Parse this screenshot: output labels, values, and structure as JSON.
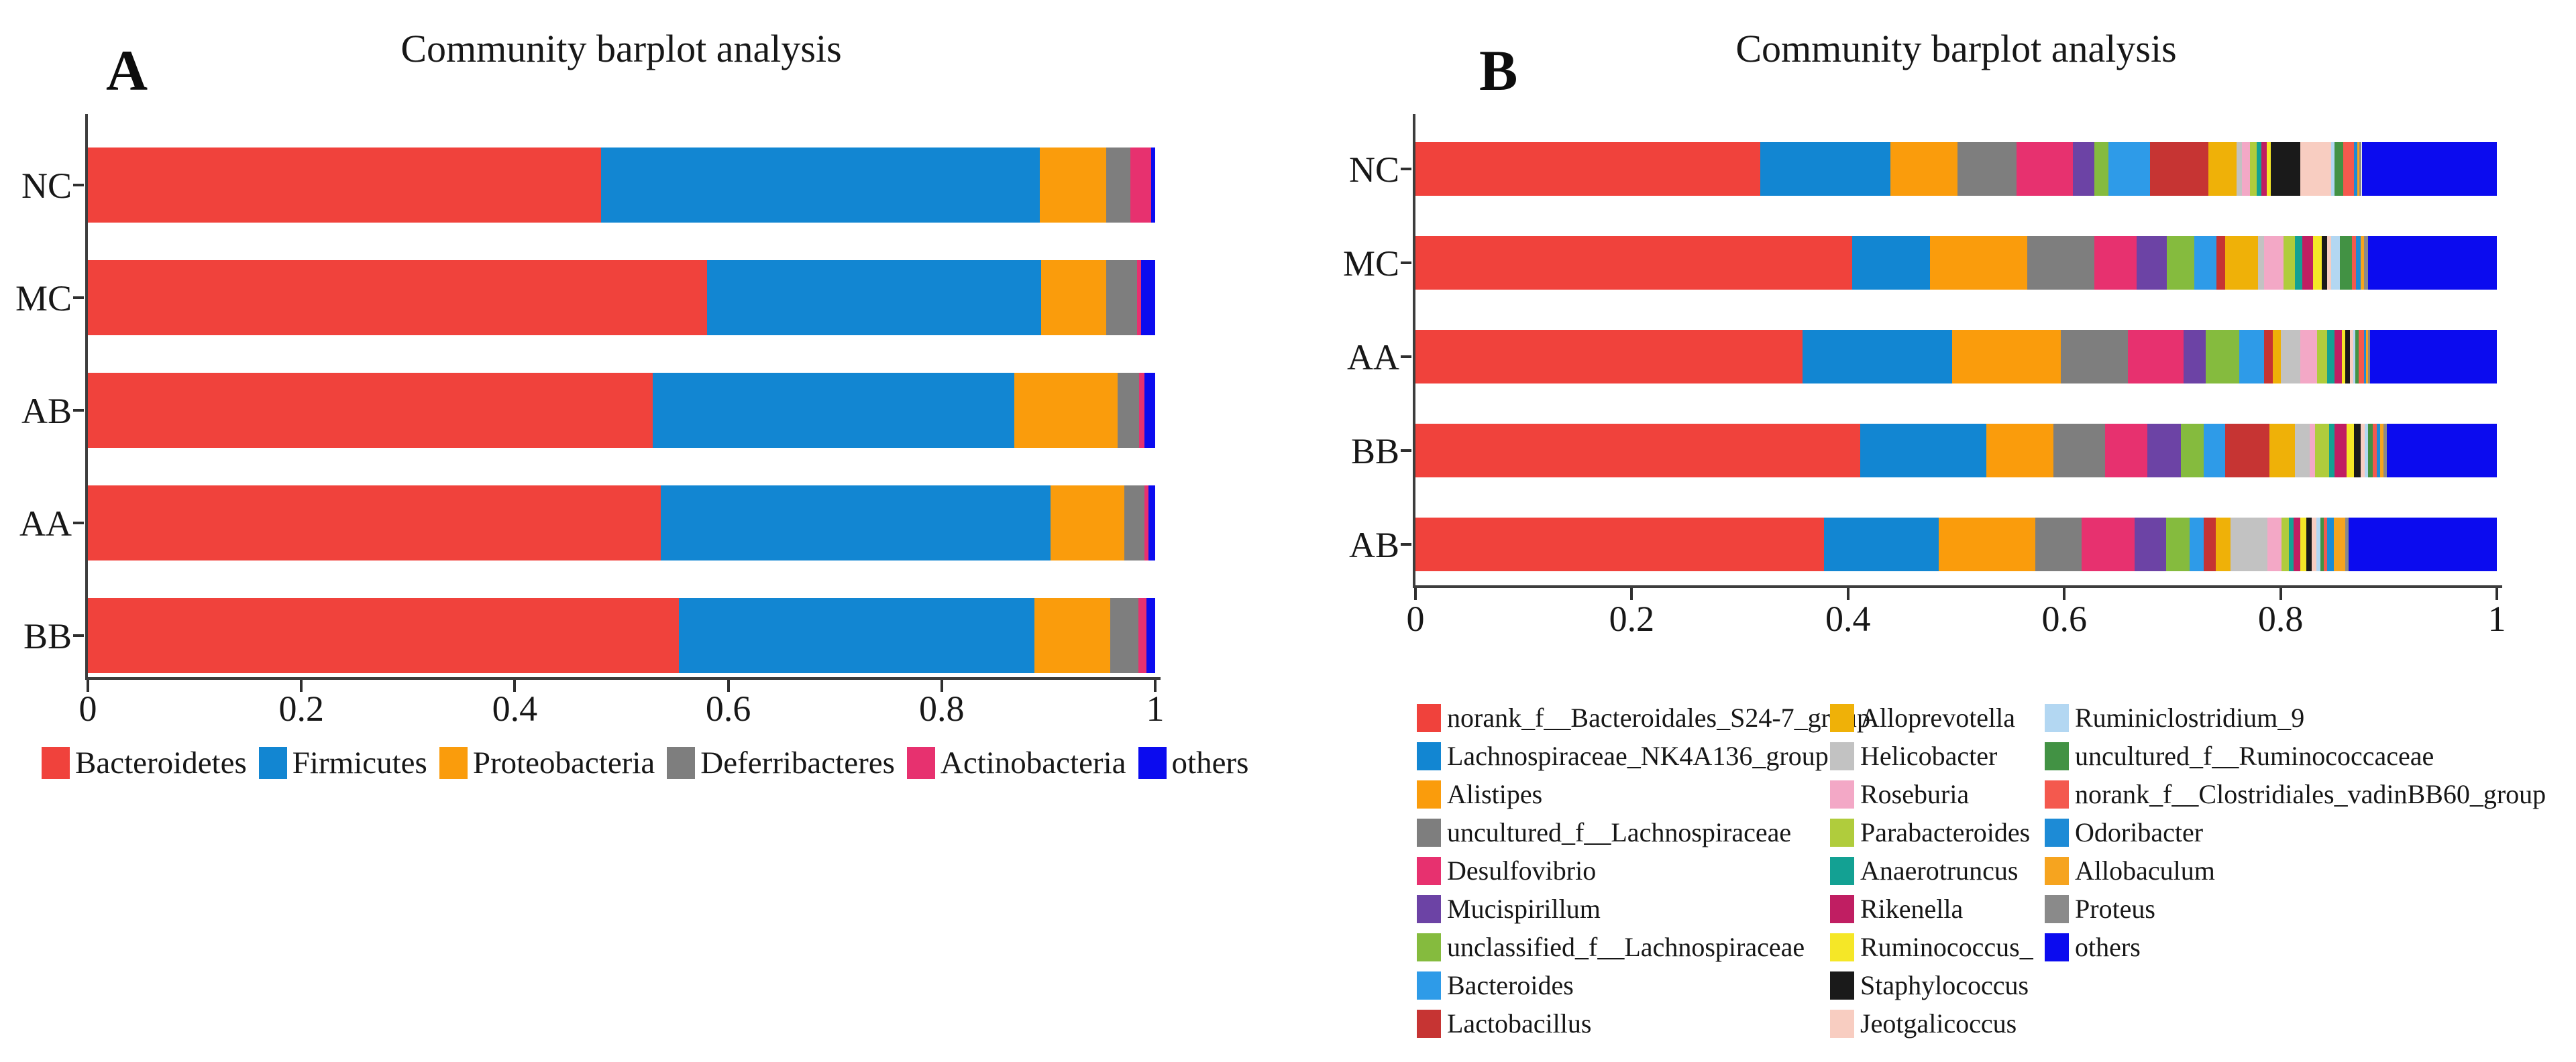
{
  "chart_data": [
    {
      "type": "bar",
      "stacked": true,
      "orientation": "horizontal",
      "panel_label": "A",
      "title": "Community barplot analysis",
      "categories": [
        "NC",
        "MC",
        "AB",
        "AA",
        "BB"
      ],
      "xlim": [
        0,
        1
      ],
      "x_tick_labels": [
        "0",
        "0.2",
        "0.4",
        "0.6",
        "0.8",
        "1"
      ],
      "grid": false,
      "legend_position": "bottom-single-row",
      "series": [
        {
          "name": "Bacteroidetes",
          "color": "#F0423C",
          "values": [
            0.481,
            0.58,
            0.529,
            0.537,
            0.554
          ]
        },
        {
          "name": "Firmicutes",
          "color": "#1286D2",
          "values": [
            0.411,
            0.313,
            0.339,
            0.365,
            0.333
          ]
        },
        {
          "name": "Proteobacteria",
          "color": "#FA9C0C",
          "values": [
            0.062,
            0.061,
            0.097,
            0.069,
            0.071
          ]
        },
        {
          "name": "Deferribacteres",
          "color": "#7E7E7E",
          "values": [
            0.023,
            0.029,
            0.02,
            0.019,
            0.026
          ]
        },
        {
          "name": "Actinobacteria",
          "color": "#E7316F",
          "values": [
            0.019,
            0.004,
            0.005,
            0.004,
            0.008
          ]
        },
        {
          "name": "others",
          "color": "#0B0BEF",
          "values": [
            0.004,
            0.013,
            0.01,
            0.006,
            0.008
          ]
        }
      ]
    },
    {
      "type": "bar",
      "stacked": true,
      "orientation": "horizontal",
      "panel_label": "B",
      "title": "Community barplot analysis",
      "categories": [
        "NC",
        "MC",
        "AA",
        "BB",
        "AB"
      ],
      "xlim": [
        0,
        1
      ],
      "x_tick_labels": [
        "0",
        "0.2",
        "0.4",
        "0.6",
        "0.8",
        "1"
      ],
      "grid": false,
      "legend_position": "bottom-three-columns",
      "legend_column_counts": [
        9,
        9,
        7
      ],
      "series": [
        {
          "name": "norank_f__Bacteroidales_S24-7_group",
          "color": "#F0423C",
          "values": [
            0.319,
            0.404,
            0.358,
            0.411,
            0.378
          ]
        },
        {
          "name": "Lachnospiraceae_NK4A136_group",
          "color": "#1286D2",
          "values": [
            0.12,
            0.072,
            0.138,
            0.117,
            0.106
          ]
        },
        {
          "name": "Alistipes",
          "color": "#FA9C0C",
          "values": [
            0.062,
            0.09,
            0.101,
            0.062,
            0.089
          ]
        },
        {
          "name": "uncultured_f__Lachnospiraceae",
          "color": "#7E7E7E",
          "values": [
            0.055,
            0.062,
            0.062,
            0.048,
            0.043
          ]
        },
        {
          "name": "Desulfovibrio",
          "color": "#E7316F",
          "values": [
            0.052,
            0.039,
            0.051,
            0.039,
            0.049
          ]
        },
        {
          "name": "Mucispirillum",
          "color": "#6C43A5",
          "values": [
            0.02,
            0.028,
            0.021,
            0.031,
            0.029
          ]
        },
        {
          "name": "unclassified_f__Lachnospiraceae",
          "color": "#85BB3E",
          "values": [
            0.013,
            0.025,
            0.031,
            0.021,
            0.022
          ]
        },
        {
          "name": "Bacteroides",
          "color": "#2E9BE8",
          "values": [
            0.038,
            0.021,
            0.023,
            0.02,
            0.013
          ]
        },
        {
          "name": "Lactobacillus",
          "color": "#C63433",
          "values": [
            0.054,
            0.008,
            0.008,
            0.041,
            0.011
          ]
        },
        {
          "name": "Alloprevotella",
          "color": "#EFB108",
          "values": [
            0.026,
            0.03,
            0.007,
            0.023,
            0.014
          ]
        },
        {
          "name": "Helicobacter",
          "color": "#C2C2C2",
          "values": [
            0.005,
            0.006,
            0.018,
            0.014,
            0.034
          ]
        },
        {
          "name": "Roseburia",
          "color": "#F3A8C6",
          "values": [
            0.008,
            0.018,
            0.016,
            0.005,
            0.013
          ]
        },
        {
          "name": "Parabacteroides",
          "color": "#B0CC3C",
          "values": [
            0.006,
            0.01,
            0.009,
            0.013,
            0.007
          ]
        },
        {
          "name": "Anaerotruncus",
          "color": "#13A193",
          "values": [
            0.004,
            0.007,
            0.007,
            0.005,
            0.004
          ]
        },
        {
          "name": "Rikenella",
          "color": "#C01E62",
          "values": [
            0.005,
            0.01,
            0.007,
            0.011,
            0.006
          ]
        },
        {
          "name": "Ruminococcus_",
          "color": "#F5E727",
          "values": [
            0.004,
            0.008,
            0.003,
            0.007,
            0.006
          ]
        },
        {
          "name": "Staphylococcus",
          "color": "#1A1A1A",
          "values": [
            0.027,
            0.005,
            0.004,
            0.006,
            0.005
          ]
        },
        {
          "name": "Jeotgalicoccus",
          "color": "#F8CDC1",
          "values": [
            0.029,
            0.004,
            0.003,
            0.004,
            0.004
          ]
        },
        {
          "name": "Ruminiclostridium_9",
          "color": "#B3D7F2",
          "values": [
            0.003,
            0.008,
            0.002,
            0.003,
            0.004
          ]
        },
        {
          "name": "uncultured_f__Ruminococcaceae",
          "color": "#429244",
          "values": [
            0.008,
            0.011,
            0.003,
            0.004,
            0.003
          ]
        },
        {
          "name": "norank_f__Clostridiales_vadinBB60_group",
          "color": "#F4594E",
          "values": [
            0.01,
            0.004,
            0.005,
            0.004,
            0.003
          ]
        },
        {
          "name": "Odoribacter",
          "color": "#1D8BD6",
          "values": [
            0.003,
            0.004,
            0.002,
            0.003,
            0.006
          ]
        },
        {
          "name": "Allobaculum",
          "color": "#F6A41F",
          "values": [
            0.002,
            0.003,
            0.002,
            0.003,
            0.011
          ]
        },
        {
          "name": "Proteus",
          "color": "#8A8A8A",
          "values": [
            0.002,
            0.004,
            0.002,
            0.003,
            0.003
          ]
        },
        {
          "name": "others",
          "color": "#0B0BEF",
          "values": [
            0.125,
            0.119,
            0.117,
            0.102,
            0.137
          ]
        }
      ]
    }
  ]
}
